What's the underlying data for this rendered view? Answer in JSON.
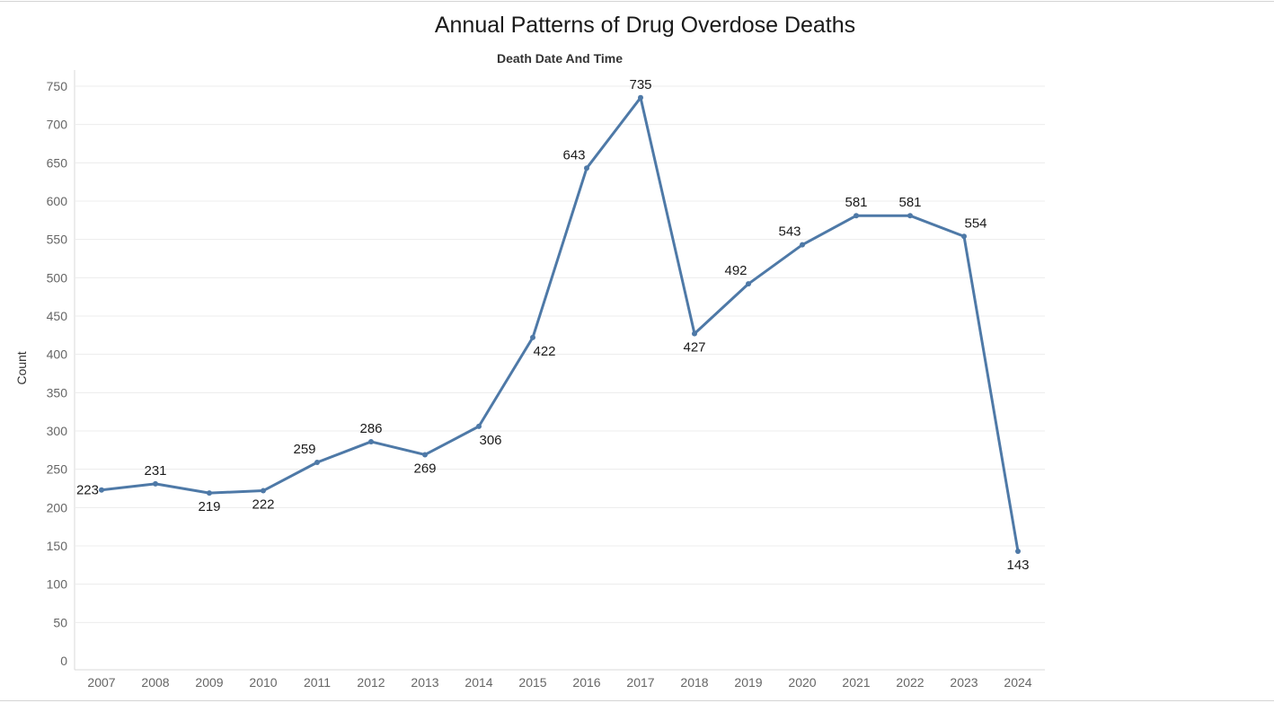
{
  "chart_data": {
    "type": "line",
    "title": "Annual Patterns of Drug Overdose Deaths",
    "subtitle": "Death Date And Time",
    "xlabel": "",
    "ylabel": "Count",
    "categories": [
      "2007",
      "2008",
      "2009",
      "2010",
      "2011",
      "2012",
      "2013",
      "2014",
      "2015",
      "2016",
      "2017",
      "2018",
      "2019",
      "2020",
      "2021",
      "2022",
      "2023",
      "2024"
    ],
    "values": [
      223,
      231,
      219,
      222,
      259,
      286,
      269,
      306,
      422,
      643,
      735,
      427,
      492,
      543,
      581,
      581,
      554,
      143
    ],
    "label_position": [
      "left",
      "above",
      "below",
      "below",
      "above",
      "above",
      "below",
      "below",
      "below",
      "above",
      "above",
      "below",
      "above",
      "above",
      "above",
      "above",
      "above",
      "below"
    ],
    "yticks": [
      0,
      50,
      100,
      150,
      200,
      250,
      300,
      350,
      400,
      450,
      500,
      550,
      600,
      650,
      700,
      750
    ],
    "ylim": [
      0,
      760
    ],
    "grid": true,
    "legend": "none",
    "colors": {
      "line": "#4e79a7",
      "grid": "#ececec",
      "axis_text": "#666666",
      "label_text": "#1a1a1a"
    }
  }
}
